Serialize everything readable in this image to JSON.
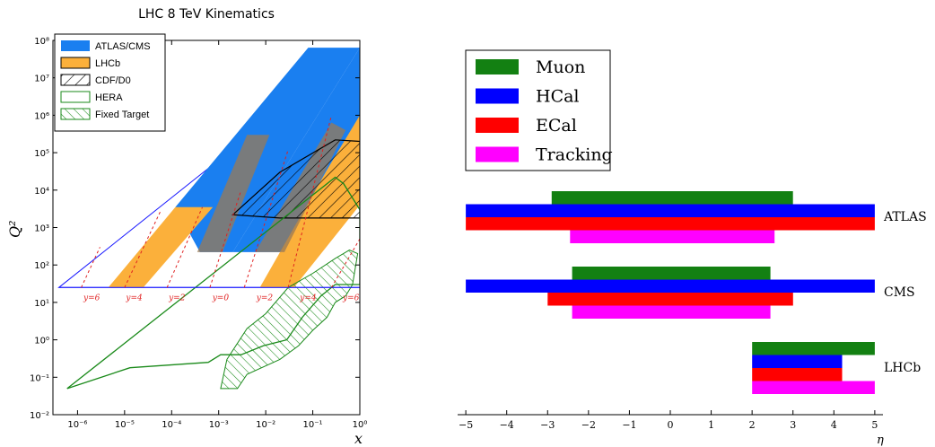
{
  "chart_data": [
    {
      "type": "area",
      "title": "LHC 8 TeV Kinematics",
      "xlabel": "x",
      "ylabel": "Q²",
      "xscale": "log",
      "yscale": "log",
      "xlim": [
        3e-07,
        1
      ],
      "ylim": [
        0.01,
        100000000.0
      ],
      "x_tick_labels": [
        "10⁻⁶",
        "10⁻⁵",
        "10⁻⁴",
        "10⁻³",
        "10⁻²",
        "10⁻¹",
        "10⁰"
      ],
      "y_tick_labels": [
        "10⁻²",
        "10⁻¹",
        "10⁰",
        "10¹",
        "10²",
        "10³",
        "10⁴",
        "10⁵",
        "10⁶",
        "10⁷",
        "10⁸"
      ],
      "legend_position": "top-left",
      "legend": [
        {
          "name": "ATLAS/CMS",
          "color": "#1a7ff0",
          "style": "filled"
        },
        {
          "name": "LHCb",
          "color": "#fbb03b",
          "style": "filled"
        },
        {
          "name": "CDF/D0",
          "color": "#000000",
          "style": "hatched"
        },
        {
          "name": "HERA",
          "color": "#1a8a1a",
          "style": "outline"
        },
        {
          "name": "Fixed Target",
          "color": "#1a8a1a",
          "style": "hatched"
        }
      ],
      "rapidity_labels": [
        "y=6",
        "y=4",
        "y=2",
        "y=0",
        "y=2",
        "y=4",
        "y=6"
      ],
      "regions": {
        "envelope": [
          [
            4e-07,
            25
          ],
          [
            1,
            64000000.0
          ]
        ],
        "atlas_cms": [
          [
            0.00035,
            220
          ],
          [
            0.0014,
            3500
          ],
          [
            0.00012,
            3500
          ]
        ],
        "lhcb": [
          [
            4.5e-06,
            25
          ],
          [
            2.5e-05,
            25
          ],
          [
            0.00012,
            3500
          ],
          [
            4e-05,
            3500
          ]
        ],
        "cdf_d0": [
          [
            0.002,
            2200
          ],
          [
            0.02,
            30000
          ],
          [
            0.3,
            220000
          ],
          [
            1,
            200000
          ],
          [
            1,
            1800
          ],
          [
            0.02,
            1800
          ]
        ],
        "hera_outline": [
          [
            6e-07,
            0.05
          ],
          [
            1.3e-05,
            0.18
          ],
          [
            0.0006,
            0.25
          ],
          [
            0.0011,
            0.4
          ],
          [
            0.003,
            0.4
          ],
          [
            0.009,
            0.7
          ],
          [
            0.028,
            1
          ],
          [
            0.06,
            4
          ],
          [
            0.15,
            15
          ],
          [
            0.3,
            30
          ],
          [
            1,
            30
          ],
          [
            1,
            3000
          ],
          [
            0.45,
            15000
          ],
          [
            0.3,
            22000
          ],
          [
            0.15,
            12000
          ],
          [
            0.04,
            2000
          ],
          [
            0.004,
            500
          ],
          [
            6e-07,
            0.05
          ]
        ],
        "fixed_target": [
          [
            0.0011,
            0.05
          ],
          [
            0.0025,
            0.05
          ],
          [
            0.004,
            0.12
          ],
          [
            0.02,
            0.3
          ],
          [
            0.05,
            0.7
          ],
          [
            0.1,
            1.8
          ],
          [
            0.2,
            4
          ],
          [
            0.3,
            10
          ],
          [
            0.5,
            15
          ],
          [
            0.7,
            30
          ],
          [
            0.9,
            200
          ],
          [
            0.6,
            250
          ],
          [
            0.3,
            150
          ],
          [
            0.1,
            60
          ],
          [
            0.03,
            25
          ],
          [
            0.01,
            5
          ],
          [
            0.004,
            2
          ],
          [
            0.0015,
            0.3
          ]
        ]
      }
    },
    {
      "type": "bar",
      "orientation": "horizontal",
      "xlabel": "η",
      "xlim": [
        -5.2,
        5.2
      ],
      "x_ticks": [
        -5,
        -4,
        -3,
        -2,
        -1,
        0,
        1,
        2,
        3,
        4,
        5
      ],
      "x_tick_labels": [
        "−5",
        "−4",
        "−3",
        "−2",
        "−1",
        "0",
        "1",
        "2",
        "3",
        "4",
        "5"
      ],
      "legend_position": "top-left",
      "series": [
        {
          "name": "Muon",
          "color": "#138012"
        },
        {
          "name": "HCal",
          "color": "#0000ff"
        },
        {
          "name": "ECal",
          "color": "#ff0000"
        },
        {
          "name": "Tracking",
          "color": "#ff00ff"
        }
      ],
      "detectors": [
        {
          "name": "ATLAS",
          "ranges": {
            "Muon": [
              -2.9,
              3.0
            ],
            "HCal": [
              -5.0,
              5.0
            ],
            "ECal": [
              -5.0,
              5.0
            ],
            "Tracking": [
              -2.45,
              2.55
            ]
          }
        },
        {
          "name": "CMS",
          "ranges": {
            "Muon": [
              -2.4,
              2.45
            ],
            "HCal": [
              -5.0,
              5.0
            ],
            "ECal": [
              -3.0,
              3.0
            ],
            "Tracking": [
              -2.4,
              2.45
            ]
          }
        },
        {
          "name": "LHCb",
          "ranges": {
            "Muon": [
              2.0,
              5.0
            ],
            "HCal": [
              2.0,
              4.2
            ],
            "ECal": [
              2.0,
              4.2
            ],
            "Tracking": [
              2.0,
              5.0
            ]
          }
        }
      ]
    }
  ]
}
